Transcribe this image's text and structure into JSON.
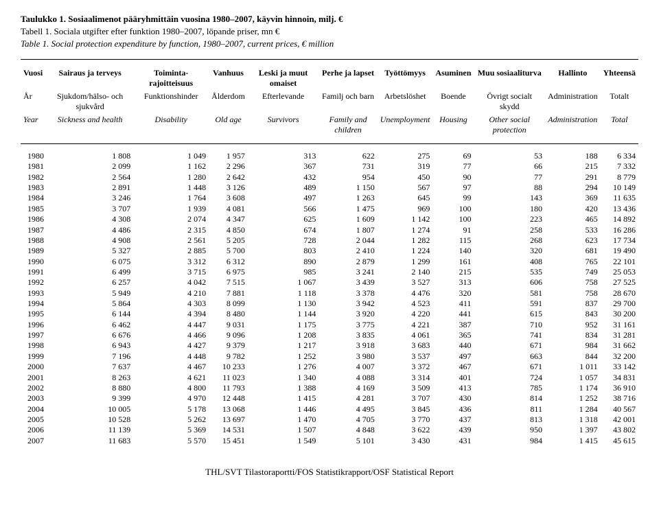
{
  "titles": {
    "fi": "Taulukko 1. Sosiaalimenot pääryhmittäin vuosina 1980–2007, käyvin hinnoin, milj. €",
    "sv": "Tabell 1. Sociala utgifter efter funktion 1980–2007, löpande priser, mn €",
    "en": "Table 1. Social protection expenditure by function, 1980–2007, current prices, € million"
  },
  "columns": {
    "fi": [
      "Vuosi",
      "Sairaus ja terveys",
      "Toiminta-rajoitteisuus",
      "Vanhuus",
      "Leski ja muut omaiset",
      "Perhe ja lapset",
      "Työttömyys",
      "Asuminen",
      "Muu sosiaaliturva",
      "Hallinto",
      "Yhteensä"
    ],
    "sv": [
      "År",
      "Sjukdom/hälso- och sjukvård",
      "Funktionshinder",
      "Ålderdom",
      "Efterlevande",
      "Familj och barn",
      "Arbetslöshet",
      "Boende",
      "Övrigt socialt skydd",
      "Administration",
      "Totalt"
    ],
    "en": [
      "Year",
      "Sickness and health",
      "Disability",
      "Old age",
      "Survivors",
      "Family and children",
      "Unemployment",
      "Housing",
      "Other social protection",
      "Administration",
      "Total"
    ]
  },
  "rows": [
    [
      "1980",
      "1 808",
      "1 049",
      "1 957",
      "313",
      "622",
      "275",
      "69",
      "53",
      "188",
      "6 334"
    ],
    [
      "1981",
      "2 099",
      "1 162",
      "2 296",
      "367",
      "731",
      "319",
      "77",
      "66",
      "215",
      "7 332"
    ],
    [
      "1982",
      "2 564",
      "1 280",
      "2 642",
      "432",
      "954",
      "450",
      "90",
      "77",
      "291",
      "8 779"
    ],
    [
      "1983",
      "2 891",
      "1 448",
      "3 126",
      "489",
      "1 150",
      "567",
      "97",
      "88",
      "294",
      "10 149"
    ],
    [
      "1984",
      "3 246",
      "1 764",
      "3 608",
      "497",
      "1 263",
      "645",
      "99",
      "143",
      "369",
      "11 635"
    ],
    [
      "1985",
      "3 707",
      "1 939",
      "4 081",
      "566",
      "1 475",
      "969",
      "100",
      "180",
      "420",
      "13 436"
    ],
    [
      "1986",
      "4 308",
      "2 074",
      "4 347",
      "625",
      "1 609",
      "1 142",
      "100",
      "223",
      "465",
      "14 892"
    ],
    [
      "1987",
      "4 486",
      "2 315",
      "4 850",
      "674",
      "1 807",
      "1 274",
      "91",
      "258",
      "533",
      "16 286"
    ],
    [
      "1988",
      "4 908",
      "2 561",
      "5 205",
      "728",
      "2 044",
      "1 282",
      "115",
      "268",
      "623",
      "17 734"
    ],
    [
      "1989",
      "5 327",
      "2 885",
      "5 700",
      "803",
      "2 410",
      "1 224",
      "140",
      "320",
      "681",
      "19 490"
    ],
    [
      "1990",
      "6 075",
      "3 312",
      "6 312",
      "890",
      "2 879",
      "1 299",
      "161",
      "408",
      "765",
      "22 101"
    ],
    [
      "1991",
      "6 499",
      "3 715",
      "6 975",
      "985",
      "3 241",
      "2 140",
      "215",
      "535",
      "749",
      "25 053"
    ],
    [
      "1992",
      "6 257",
      "4 042",
      "7 515",
      "1 067",
      "3 439",
      "3 527",
      "313",
      "606",
      "758",
      "27 525"
    ],
    [
      "1993",
      "5 949",
      "4 210",
      "7 881",
      "1 118",
      "3 378",
      "4 476",
      "320",
      "581",
      "758",
      "28 670"
    ],
    [
      "1994",
      "5 864",
      "4 303",
      "8 099",
      "1 130",
      "3 942",
      "4 523",
      "411",
      "591",
      "837",
      "29 700"
    ],
    [
      "1995",
      "6 144",
      "4 394",
      "8 480",
      "1 144",
      "3 920",
      "4 220",
      "441",
      "615",
      "843",
      "30 200"
    ],
    [
      "1996",
      "6 462",
      "4 447",
      "9 031",
      "1 175",
      "3 775",
      "4 221",
      "387",
      "710",
      "952",
      "31 161"
    ],
    [
      "1997",
      "6 676",
      "4 466",
      "9 096",
      "1 208",
      "3 835",
      "4 061",
      "365",
      "741",
      "834",
      "31 281"
    ],
    [
      "1998",
      "6 943",
      "4 427",
      "9 379",
      "1 217",
      "3 918",
      "3 683",
      "440",
      "671",
      "984",
      "31 662"
    ],
    [
      "1999",
      "7 196",
      "4 448",
      "9 782",
      "1 252",
      "3 980",
      "3 537",
      "497",
      "663",
      "844",
      "32 200"
    ],
    [
      "2000",
      "7 637",
      "4 467",
      "10 233",
      "1 276",
      "4 007",
      "3 372",
      "467",
      "671",
      "1 011",
      "33 142"
    ],
    [
      "2001",
      "8 263",
      "4 621",
      "11 023",
      "1 340",
      "4 088",
      "3 314",
      "401",
      "724",
      "1 057",
      "34 831"
    ],
    [
      "2002",
      "8 880",
      "4 800",
      "11 793",
      "1 388",
      "4 169",
      "3 509",
      "413",
      "785",
      "1 174",
      "36 910"
    ],
    [
      "2003",
      "9 399",
      "4 970",
      "12 448",
      "1 415",
      "4 281",
      "3 707",
      "430",
      "814",
      "1 252",
      "38 716"
    ],
    [
      "2004",
      "10 005",
      "5 178",
      "13 068",
      "1 446",
      "4 495",
      "3 845",
      "436",
      "811",
      "1 284",
      "40 567"
    ],
    [
      "2005",
      "10 528",
      "5 262",
      "13 697",
      "1 470",
      "4 705",
      "3 770",
      "437",
      "813",
      "1 318",
      "42 001"
    ],
    [
      "2006",
      "11 139",
      "5 369",
      "14 531",
      "1 507",
      "4 848",
      "3 622",
      "439",
      "950",
      "1 397",
      "43 802"
    ],
    [
      "2007",
      "11 683",
      "5 570",
      "15 451",
      "1 549",
      "5 101",
      "3 430",
      "431",
      "984",
      "1 415",
      "45 615"
    ]
  ],
  "footer": "THL/SVT Tilastoraportti/FOS Statistikrapport/OSF Statistical Report"
}
